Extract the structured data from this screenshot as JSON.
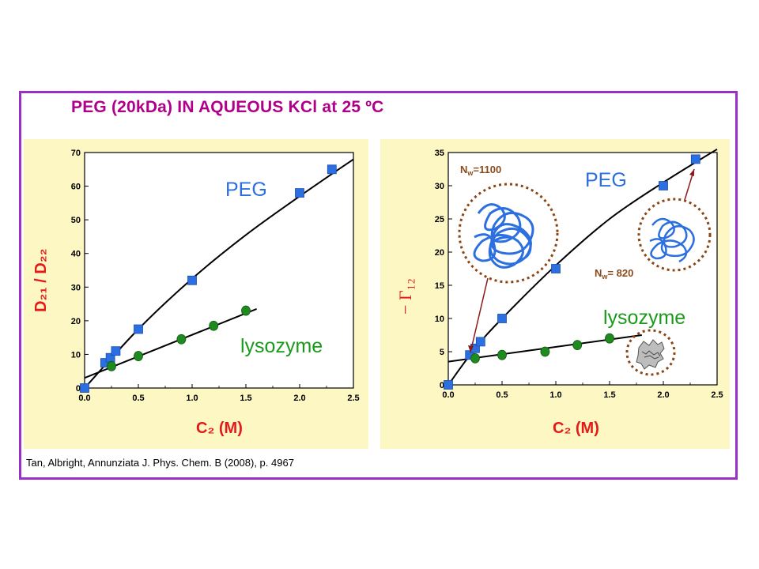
{
  "title": "PEG (20kDa)  IN AQUEOUS KCl at 25 ºC",
  "citation": "Tan, Albright, Annunziata J. Phys. Chem. B (2008), p. 4967",
  "colors": {
    "frame": "#9b30c8",
    "title": "#b0008a",
    "panel": "#fdf7c4",
    "peg": "#2b6fe0",
    "lysozyme": "#1f8a1f",
    "axis_label": "#e41a1a",
    "series_label_lysozyme": "#1a9a1a"
  },
  "chart_data": [
    {
      "type": "scatter",
      "xlabel": "C₂ (M)",
      "ylabel": "D₂₁ / D₂₂",
      "xlim": [
        0,
        2.5
      ],
      "ylim": [
        0,
        70
      ],
      "xticks": [
        "0.0",
        "0.5",
        "1.0",
        "1.5",
        "2.0",
        "2.5"
      ],
      "yticks": [
        "0",
        "10",
        "20",
        "30",
        "40",
        "50",
        "60",
        "70"
      ],
      "series": [
        {
          "name": "PEG",
          "marker": "square",
          "color": "#2b6fe0",
          "x": [
            0.0,
            0.19,
            0.24,
            0.29,
            0.5,
            1.0,
            2.0,
            2.3
          ],
          "y": [
            0.0,
            7.5,
            9.0,
            11.0,
            17.5,
            32.0,
            58.0,
            65.0
          ],
          "fit_x": [
            0.0,
            0.5,
            1.0,
            1.5,
            2.0,
            2.5
          ],
          "fit_y": [
            0.0,
            17.5,
            32.5,
            45.5,
            57.0,
            68.0
          ]
        },
        {
          "name": "lysozyme",
          "marker": "circle",
          "color": "#1f8a1f",
          "x": [
            0.25,
            0.5,
            0.9,
            1.2,
            1.5
          ],
          "y": [
            6.5,
            9.5,
            14.5,
            18.5,
            23.0
          ],
          "fit_x": [
            0.0,
            1.6
          ],
          "fit_y": [
            3.0,
            23.5
          ]
        }
      ]
    },
    {
      "type": "scatter",
      "xlabel": "C₂ (M)",
      "ylabel": "− Γ₁₂",
      "xlim": [
        0,
        2.5
      ],
      "ylim": [
        0,
        35
      ],
      "xticks": [
        "0.0",
        "0.5",
        "1.0",
        "1.5",
        "2.0",
        "2.5"
      ],
      "yticks": [
        "0",
        "5",
        "10",
        "15",
        "20",
        "25",
        "30",
        "35"
      ],
      "series": [
        {
          "name": "PEG",
          "marker": "square",
          "color": "#2b6fe0",
          "x": [
            0.0,
            0.2,
            0.25,
            0.3,
            0.5,
            1.0,
            2.0,
            2.3
          ],
          "y": [
            0.0,
            4.5,
            5.5,
            6.5,
            10.0,
            17.5,
            30.0,
            34.0
          ],
          "fit_x": [
            0.0,
            0.25,
            0.5,
            1.0,
            1.5,
            2.0,
            2.5
          ],
          "fit_y": [
            0.0,
            5.5,
            10.0,
            18.0,
            25.0,
            30.5,
            35.5
          ]
        },
        {
          "name": "lysozyme",
          "marker": "circle",
          "color": "#1f8a1f",
          "x": [
            0.25,
            0.5,
            0.9,
            1.2,
            1.5
          ],
          "y": [
            4.0,
            4.5,
            5.0,
            6.0,
            7.0
          ],
          "fit_x": [
            0.0,
            1.8
          ],
          "fit_y": [
            3.5,
            7.5
          ]
        }
      ],
      "annotations": {
        "nw_large": "=1100",
        "nw_small": "= 820",
        "nw_symbol": "N",
        "nw_subscript": "w"
      }
    }
  ]
}
